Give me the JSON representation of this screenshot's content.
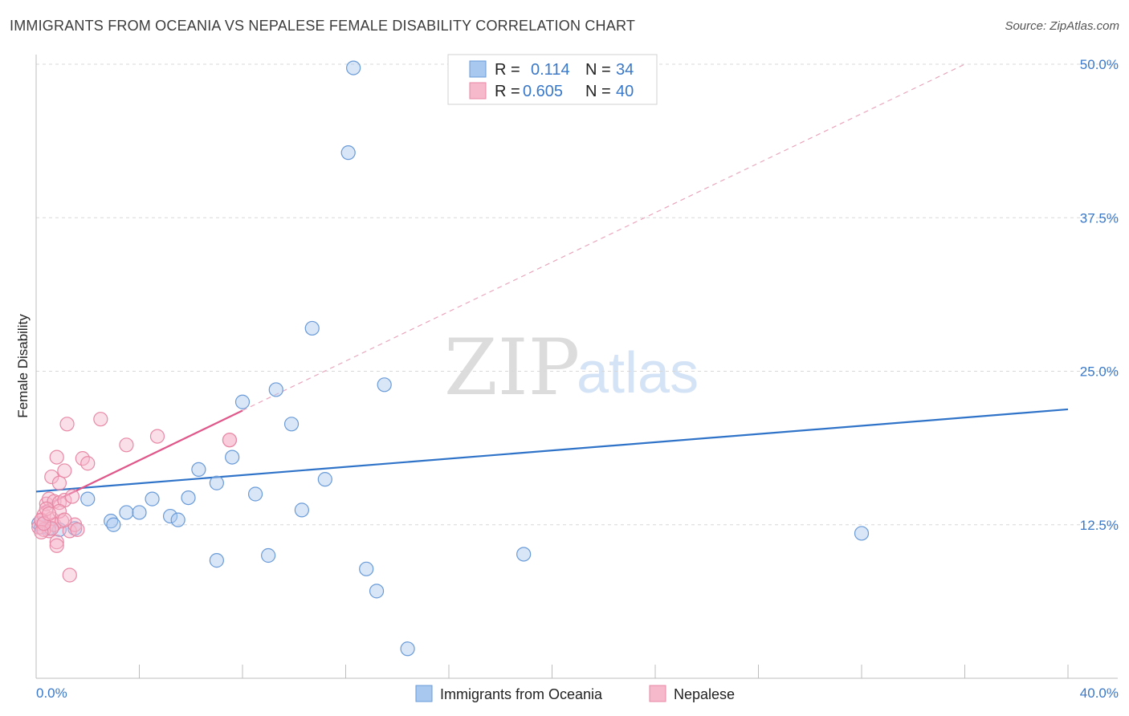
{
  "header": {
    "title": "IMMIGRANTS FROM OCEANIA VS NEPALESE FEMALE DISABILITY CORRELATION CHART",
    "source": "Source: ZipAtlas.com"
  },
  "watermark": {
    "zip": "ZIP",
    "atlas": "atlas"
  },
  "legend_box": {
    "rows": [
      {
        "r_label": "R =",
        "r_value": "0.114",
        "n_label": "N =",
        "n_value": "34",
        "color": "#a8c8f0",
        "stroke": "#6a9bd8"
      },
      {
        "r_label": "R =",
        "r_value": "0.605",
        "n_label": "N =",
        "n_value": "40",
        "color": "#f6b8cb",
        "stroke": "#e889a6"
      }
    ]
  },
  "bottom_legend": {
    "items": [
      {
        "label": "Immigrants from Oceania",
        "color": "#a8c8f0",
        "stroke": "#6a9bd8"
      },
      {
        "label": "Nepalese",
        "color": "#f6b8cb",
        "stroke": "#e889a6"
      }
    ]
  },
  "chart_data": {
    "type": "scatter",
    "title": "IMMIGRANTS FROM OCEANIA VS NEPALESE FEMALE DISABILITY CORRELATION CHART",
    "xlabel": "",
    "ylabel": "Female Disability",
    "xlim": [
      0,
      40
    ],
    "ylim": [
      0,
      50
    ],
    "x_tick_labels": [
      "0.0%",
      "40.0%"
    ],
    "y_ticks": [
      12.5,
      25.0,
      37.5,
      50.0
    ],
    "y_tick_labels": [
      "12.5%",
      "25.0%",
      "37.5%",
      "50.0%"
    ],
    "grid": true,
    "series": [
      {
        "name": "Immigrants from Oceania",
        "color": "#a8c8f0",
        "stroke": "#6a9bd8",
        "line_color": "#2f73c9",
        "trend": {
          "x": [
            0,
            40
          ],
          "y": [
            15.2,
            21.9
          ],
          "dashed_ext": null
        },
        "points": [
          [
            0.1,
            12.6
          ],
          [
            0.2,
            12.3
          ],
          [
            0.5,
            12.2
          ],
          [
            0.9,
            12.1
          ],
          [
            1.5,
            12.2
          ],
          [
            2.0,
            14.6
          ],
          [
            2.9,
            12.8
          ],
          [
            3.5,
            13.5
          ],
          [
            4.0,
            13.5
          ],
          [
            4.5,
            14.6
          ],
          [
            5.2,
            13.2
          ],
          [
            5.5,
            12.9
          ],
          [
            5.9,
            14.7
          ],
          [
            6.3,
            17.0
          ],
          [
            7.0,
            15.9
          ],
          [
            7.6,
            18.0
          ],
          [
            7.0,
            9.6
          ],
          [
            8.0,
            22.5
          ],
          [
            8.5,
            15.0
          ],
          [
            9.0,
            10.0
          ],
          [
            9.3,
            23.5
          ],
          [
            9.9,
            20.7
          ],
          [
            10.3,
            13.7
          ],
          [
            10.7,
            28.5
          ],
          [
            11.2,
            16.2
          ],
          [
            12.1,
            42.8
          ],
          [
            12.3,
            49.7
          ],
          [
            12.8,
            8.9
          ],
          [
            13.2,
            7.1
          ],
          [
            13.5,
            23.9
          ],
          [
            14.4,
            2.4
          ],
          [
            18.9,
            10.1
          ],
          [
            32.0,
            11.8
          ],
          [
            3.0,
            12.5
          ]
        ]
      },
      {
        "name": "Nepalese",
        "color": "#f6b8cb",
        "stroke": "#e889a6",
        "line_color": "#e0578a",
        "trend": {
          "x": [
            0.2,
            8.0
          ],
          "y": [
            13.9,
            21.8
          ],
          "dashed_ext": {
            "x": [
              8.0,
              36.0
            ],
            "y": [
              21.8,
              50.0
            ]
          }
        },
        "points": [
          [
            0.1,
            12.3
          ],
          [
            0.2,
            12.8
          ],
          [
            0.3,
            13.3
          ],
          [
            0.4,
            14.2
          ],
          [
            0.5,
            12.0
          ],
          [
            0.6,
            13.0
          ],
          [
            0.7,
            12.5
          ],
          [
            0.3,
            12.1
          ],
          [
            0.5,
            14.6
          ],
          [
            0.6,
            16.4
          ],
          [
            0.7,
            14.4
          ],
          [
            0.8,
            18.0
          ],
          [
            0.9,
            14.3
          ],
          [
            0.9,
            15.9
          ],
          [
            1.0,
            12.8
          ],
          [
            0.8,
            11.1
          ],
          [
            0.8,
            10.8
          ],
          [
            1.1,
            16.9
          ],
          [
            1.1,
            14.5
          ],
          [
            1.2,
            20.7
          ],
          [
            1.3,
            8.4
          ],
          [
            1.3,
            12.0
          ],
          [
            1.4,
            14.8
          ],
          [
            1.5,
            12.5
          ],
          [
            1.6,
            12.1
          ],
          [
            1.8,
            17.9
          ],
          [
            2.0,
            17.5
          ],
          [
            2.5,
            21.1
          ],
          [
            3.5,
            19.0
          ],
          [
            4.7,
            19.7
          ],
          [
            7.5,
            19.4
          ],
          [
            7.5,
            19.4
          ],
          [
            0.2,
            12.9
          ],
          [
            0.4,
            13.8
          ],
          [
            0.9,
            13.6
          ],
          [
            1.1,
            12.9
          ],
          [
            0.6,
            12.2
          ],
          [
            0.2,
            11.9
          ],
          [
            0.3,
            12.6
          ],
          [
            0.5,
            13.4
          ]
        ]
      }
    ]
  }
}
